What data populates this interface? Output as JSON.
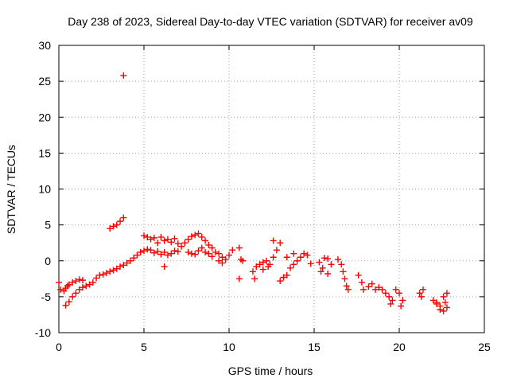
{
  "colors": {
    "series": "#ff0000",
    "grid": "#a0a0a0",
    "axis": "#000000"
  },
  "chart_data": {
    "type": "scatter",
    "title": "Day 238 of 2023, Sidereal Day-to-day VTEC variation (SDTVAR) for receiver av09",
    "xlabel": "GPS time / hours",
    "ylabel": "SDTVAR / TECUs",
    "xlim": [
      0,
      25
    ],
    "ylim": [
      -10,
      30
    ],
    "xticks": [
      0,
      5,
      10,
      15,
      20,
      25
    ],
    "yticks": [
      -10,
      -5,
      0,
      5,
      10,
      15,
      20,
      25,
      30
    ],
    "grid": true,
    "marker": "plus",
    "series": [
      {
        "name": "SDTVAR",
        "points": [
          [
            0.0,
            -3.0
          ],
          [
            0.1,
            -4.0
          ],
          [
            0.3,
            -4.2
          ],
          [
            0.4,
            -3.8
          ],
          [
            0.5,
            -3.5
          ],
          [
            0.6,
            -3.3
          ],
          [
            0.8,
            -3.0
          ],
          [
            1.0,
            -2.8
          ],
          [
            1.2,
            -2.6
          ],
          [
            1.4,
            -2.7
          ],
          [
            0.4,
            -6.2
          ],
          [
            0.6,
            -5.7
          ],
          [
            0.8,
            -5.0
          ],
          [
            1.0,
            -4.5
          ],
          [
            1.2,
            -4.0
          ],
          [
            1.4,
            -3.7
          ],
          [
            1.6,
            -3.5
          ],
          [
            1.8,
            -3.3
          ],
          [
            2.0,
            -3.0
          ],
          [
            2.2,
            -2.4
          ],
          [
            2.4,
            -2.0
          ],
          [
            2.6,
            -1.9
          ],
          [
            2.8,
            -1.7
          ],
          [
            3.0,
            -1.5
          ],
          [
            3.2,
            -1.3
          ],
          [
            3.4,
            -1.1
          ],
          [
            3.6,
            -0.8
          ],
          [
            3.8,
            -0.6
          ],
          [
            4.0,
            -0.3
          ],
          [
            4.2,
            0.0
          ],
          [
            4.4,
            0.4
          ],
          [
            4.6,
            0.8
          ],
          [
            4.8,
            1.2
          ],
          [
            5.0,
            1.4
          ],
          [
            5.2,
            1.6
          ],
          [
            3.0,
            4.5
          ],
          [
            3.2,
            4.8
          ],
          [
            3.4,
            5.0
          ],
          [
            3.6,
            5.5
          ],
          [
            3.8,
            6.0
          ],
          [
            3.8,
            25.8
          ],
          [
            5.0,
            3.5
          ],
          [
            5.2,
            3.3
          ],
          [
            5.4,
            3.0
          ],
          [
            5.6,
            3.2
          ],
          [
            5.8,
            2.5
          ],
          [
            6.0,
            3.3
          ],
          [
            6.2,
            2.8
          ],
          [
            6.4,
            3.0
          ],
          [
            6.6,
            2.6
          ],
          [
            6.8,
            3.1
          ],
          [
            7.0,
            2.4
          ],
          [
            5.4,
            1.5
          ],
          [
            5.6,
            1.1
          ],
          [
            5.8,
            1.3
          ],
          [
            6.0,
            0.9
          ],
          [
            6.2,
            1.2
          ],
          [
            6.4,
            0.8
          ],
          [
            6.6,
            1.0
          ],
          [
            6.8,
            1.4
          ],
          [
            7.0,
            1.3
          ],
          [
            6.2,
            -0.8
          ],
          [
            7.2,
            2.0
          ],
          [
            7.4,
            2.5
          ],
          [
            7.6,
            3.0
          ],
          [
            7.8,
            3.4
          ],
          [
            8.0,
            3.6
          ],
          [
            8.2,
            3.8
          ],
          [
            8.4,
            3.3
          ],
          [
            8.6,
            2.8
          ],
          [
            8.8,
            2.2
          ],
          [
            9.0,
            1.8
          ],
          [
            7.6,
            1.2
          ],
          [
            7.8,
            1.0
          ],
          [
            8.0,
            0.9
          ],
          [
            8.2,
            1.4
          ],
          [
            8.4,
            1.8
          ],
          [
            8.6,
            1.2
          ],
          [
            8.8,
            1.0
          ],
          [
            9.0,
            0.6
          ],
          [
            9.2,
            1.2
          ],
          [
            9.4,
            1.0
          ],
          [
            9.6,
            0.5
          ],
          [
            9.8,
            0.2
          ],
          [
            10.0,
            0.8
          ],
          [
            10.2,
            1.5
          ],
          [
            9.4,
            0.0
          ],
          [
            9.6,
            -0.3
          ],
          [
            10.6,
            1.8
          ],
          [
            10.7,
            0.2
          ],
          [
            10.8,
            0.0
          ],
          [
            10.6,
            -2.5
          ],
          [
            11.4,
            -1.5
          ],
          [
            11.6,
            -0.8
          ],
          [
            11.8,
            -0.5
          ],
          [
            12.0,
            -0.2
          ],
          [
            12.2,
            0.0
          ],
          [
            12.4,
            -0.5
          ],
          [
            12.6,
            0.5
          ],
          [
            12.8,
            1.5
          ],
          [
            13.0,
            2.5
          ],
          [
            12.6,
            2.8
          ],
          [
            11.5,
            -2.5
          ],
          [
            12.0,
            -1.2
          ],
          [
            12.3,
            -0.8
          ],
          [
            13.0,
            -2.8
          ],
          [
            13.2,
            -2.3
          ],
          [
            13.4,
            -2.0
          ],
          [
            13.6,
            -1.0
          ],
          [
            13.8,
            -0.5
          ],
          [
            14.0,
            0.0
          ],
          [
            14.2,
            0.5
          ],
          [
            14.4,
            1.0
          ],
          [
            14.6,
            0.8
          ],
          [
            14.8,
            -0.4
          ],
          [
            13.4,
            0.5
          ],
          [
            13.8,
            1.0
          ],
          [
            15.3,
            -0.2
          ],
          [
            15.4,
            -1.5
          ],
          [
            15.6,
            0.4
          ],
          [
            15.8,
            0.3
          ],
          [
            16.0,
            -0.5
          ],
          [
            15.5,
            -1.0
          ],
          [
            15.8,
            -1.8
          ],
          [
            16.4,
            0.2
          ],
          [
            16.6,
            -0.5
          ],
          [
            16.7,
            -1.5
          ],
          [
            16.8,
            -2.5
          ],
          [
            16.9,
            -3.5
          ],
          [
            17.0,
            -4.0
          ],
          [
            17.6,
            -2.0
          ],
          [
            17.8,
            -3.0
          ],
          [
            17.9,
            -4.0
          ],
          [
            18.2,
            -3.6
          ],
          [
            18.4,
            -3.2
          ],
          [
            18.6,
            -4.0
          ],
          [
            18.8,
            -3.7
          ],
          [
            19.0,
            -4.0
          ],
          [
            19.2,
            -4.5
          ],
          [
            19.4,
            -5.0
          ],
          [
            19.5,
            -6.0
          ],
          [
            19.6,
            -5.5
          ],
          [
            19.8,
            -4.0
          ],
          [
            20.0,
            -4.5
          ],
          [
            20.2,
            -5.5
          ],
          [
            20.1,
            -6.3
          ],
          [
            21.2,
            -4.5
          ],
          [
            21.4,
            -4.0
          ],
          [
            21.3,
            -5.0
          ],
          [
            22.0,
            -5.5
          ],
          [
            22.2,
            -6.0
          ],
          [
            22.4,
            -6.8
          ],
          [
            22.6,
            -7.0
          ],
          [
            22.8,
            -6.5
          ],
          [
            22.6,
            -5.0
          ],
          [
            22.8,
            -4.5
          ],
          [
            22.2,
            -5.8
          ],
          [
            22.4,
            -6.3
          ],
          [
            22.7,
            -5.8
          ]
        ]
      }
    ]
  }
}
